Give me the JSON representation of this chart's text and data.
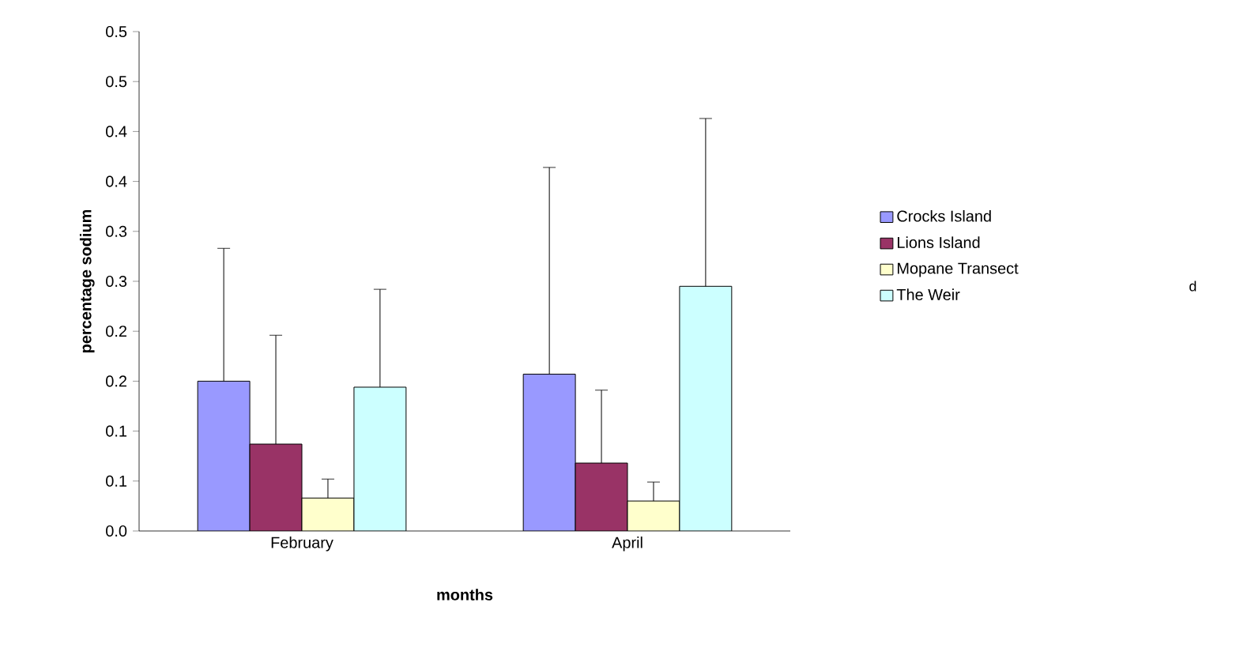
{
  "chart_data": {
    "type": "bar",
    "xlabel": "months",
    "ylabel": "percentage sodium",
    "categories": [
      "February",
      "April"
    ],
    "series": [
      {
        "name": "Crocks Island",
        "color": "#9999ff",
        "values": [
          0.15,
          0.157
        ],
        "errors": [
          [
            0.15,
            0.283
          ],
          [
            0.157,
            0.364
          ]
        ]
      },
      {
        "name": "Lions Island",
        "color": "#993366",
        "values": [
          0.087,
          0.068
        ],
        "errors": [
          [
            0.087,
            0.196
          ],
          [
            0.068,
            0.141
          ]
        ]
      },
      {
        "name": "Mopane Transect",
        "color": "#ffffcc",
        "values": [
          0.033,
          0.03
        ],
        "errors": [
          [
            0.033,
            0.052
          ],
          [
            0.03,
            0.049
          ]
        ]
      },
      {
        "name": "The Weir",
        "color": "#ccffff",
        "values": [
          0.144,
          0.245
        ],
        "errors": [
          [
            0.144,
            0.242
          ],
          [
            0.245,
            0.413
          ]
        ]
      }
    ],
    "ylim": [
      0,
      0.5
    ],
    "yticks": [
      {
        "value": 0,
        "label": "0.0"
      },
      {
        "value": 0.05,
        "label": "0.1"
      },
      {
        "value": 0.1,
        "label": "0.1"
      },
      {
        "value": 0.15,
        "label": "0.2"
      },
      {
        "value": 0.2,
        "label": "0.2"
      },
      {
        "value": 0.25,
        "label": "0.3"
      },
      {
        "value": 0.3,
        "label": "0.3"
      },
      {
        "value": 0.35,
        "label": "0.4"
      },
      {
        "value": 0.4,
        "label": "0.4"
      },
      {
        "value": 0.45,
        "label": "0.5"
      },
      {
        "value": 0.5,
        "label": "0.5"
      }
    ],
    "legend": "right",
    "grid": false,
    "annotations": [
      "d"
    ]
  }
}
